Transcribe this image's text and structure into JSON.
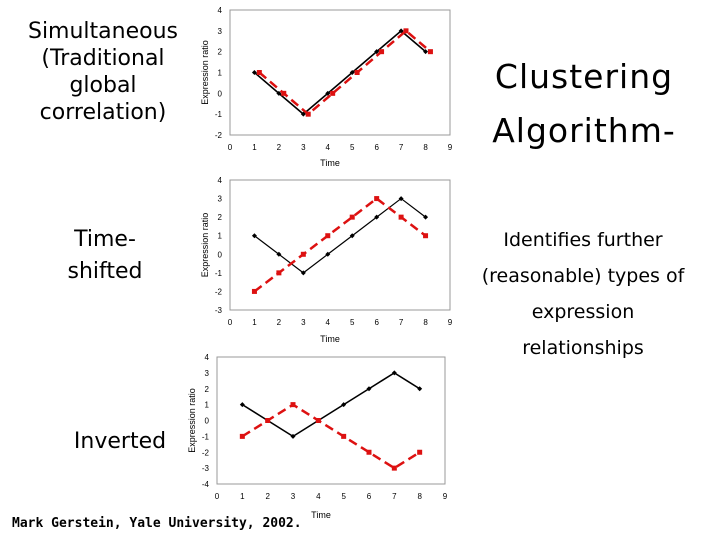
{
  "labels": {
    "simultaneous": "Simultaneous (Traditional global correlation)",
    "simultaneous_lines": [
      "Simultaneous",
      "(Traditional",
      "global",
      "correlation)"
    ],
    "time_shifted_lines": [
      "Time-",
      "shifted"
    ],
    "inverted": "Inverted"
  },
  "title_lines": [
    "Clustering",
    "Algorithm-"
  ],
  "subtitle_lines": [
    "Identifies further",
    "(reasonable) types of",
    "expression",
    "relationships"
  ],
  "credit": "Mark Gerstein, Yale University, 2002.",
  "colors": {
    "black_series": "#000000",
    "red_series": "#dd1111",
    "plot_border": "#999999"
  },
  "chart_data": [
    {
      "type": "line",
      "xlabel": "Time",
      "ylabel": "Expression ratio",
      "xlim": [
        0,
        9
      ],
      "ylim": [
        -2,
        4
      ],
      "xticks": [
        "0",
        "1",
        "2",
        "3",
        "4",
        "5",
        "6",
        "7",
        "8",
        "9"
      ],
      "yticks": [
        "4",
        "3",
        "2",
        "1",
        "0",
        "-1",
        "-2"
      ],
      "grid": false,
      "series": [
        {
          "color": "black",
          "style": "solid",
          "marker": "diamond",
          "x": [
            1,
            2,
            3,
            4,
            5,
            6,
            7,
            8
          ],
          "y": [
            1,
            0,
            -1,
            0,
            1,
            2,
            3,
            2
          ]
        },
        {
          "color": "red",
          "style": "dashed",
          "marker": "square",
          "x": [
            1.2,
            2.2,
            3.2,
            4.2,
            5.2,
            6.2,
            7.2,
            8.2
          ],
          "y": [
            1,
            0,
            -1,
            0,
            1,
            2,
            3,
            2
          ]
        }
      ]
    },
    {
      "type": "line",
      "xlabel": "Time",
      "ylabel": "Expression ratio",
      "xlim": [
        0,
        9
      ],
      "ylim": [
        -3,
        4
      ],
      "xticks": [
        "0",
        "1",
        "2",
        "3",
        "4",
        "5",
        "6",
        "7",
        "8",
        "9"
      ],
      "yticks": [
        "4",
        "3",
        "2",
        "1",
        "0",
        "-1",
        "-2",
        "-3"
      ],
      "grid": false,
      "series": [
        {
          "color": "black",
          "style": "solid",
          "marker": "diamond",
          "x": [
            1,
            2,
            3,
            4,
            5,
            6,
            7,
            8
          ],
          "y": [
            1,
            0,
            -1,
            0,
            1,
            2,
            3,
            2
          ]
        },
        {
          "color": "red",
          "style": "dashed",
          "marker": "square",
          "x": [
            1,
            2,
            3,
            4,
            5,
            6,
            7,
            8
          ],
          "y": [
            -2,
            -1,
            0,
            1,
            2,
            3,
            2,
            1
          ]
        }
      ]
    },
    {
      "type": "line",
      "xlabel": "Time",
      "ylabel": "Expression ratio",
      "xlim": [
        0,
        9
      ],
      "ylim": [
        -4,
        4
      ],
      "xticks": [
        "0",
        "1",
        "2",
        "3",
        "4",
        "5",
        "6",
        "7",
        "8",
        "9"
      ],
      "yticks": [
        "4",
        "3",
        "2",
        "1",
        "0",
        "-1",
        "-2",
        "-3",
        "-4"
      ],
      "grid": false,
      "series": [
        {
          "color": "black",
          "style": "solid",
          "marker": "diamond",
          "x": [
            1,
            2,
            3,
            4,
            5,
            6,
            7,
            8
          ],
          "y": [
            1,
            0,
            -1,
            0,
            1,
            2,
            3,
            2
          ]
        },
        {
          "color": "red",
          "style": "dashed",
          "marker": "square",
          "x": [
            1,
            2,
            3,
            4,
            5,
            6,
            7,
            8
          ],
          "y": [
            -1,
            0,
            1,
            0,
            -1,
            -2,
            -3,
            -2
          ]
        }
      ]
    }
  ]
}
